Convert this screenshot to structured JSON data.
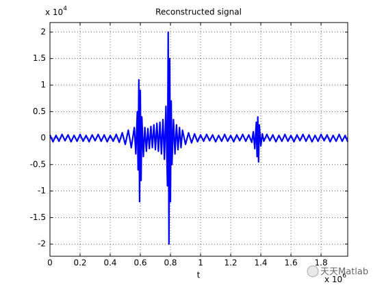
{
  "chart_data": {
    "type": "line",
    "title": "Reconstructed signal",
    "x_label": "t",
    "y_exponent": {
      "base": "x 10",
      "power": "4"
    },
    "x_exponent": {
      "base": "x 10",
      "power": "6"
    },
    "watermark": "天天Matlab",
    "xlim": [
      0,
      1.977
    ],
    "ylim": [
      -2.23,
      2.18
    ],
    "xticks": [
      0,
      0.2,
      0.4,
      0.6,
      0.8,
      1,
      1.2,
      1.4,
      1.6,
      1.8
    ],
    "yticks": [
      -2,
      -1.5,
      -1,
      -0.5,
      0,
      0.5,
      1,
      1.5,
      2
    ],
    "grid": true,
    "x": [
      0,
      0.02,
      0.04,
      0.06,
      0.08,
      0.1,
      0.12,
      0.14,
      0.16,
      0.18,
      0.2,
      0.22,
      0.24,
      0.26,
      0.28,
      0.3,
      0.32,
      0.34,
      0.36,
      0.38,
      0.4,
      0.42,
      0.44,
      0.46,
      0.48,
      0.5,
      0.52,
      0.54,
      0.56,
      0.57,
      0.58,
      0.585,
      0.59,
      0.595,
      0.6,
      0.605,
      0.61,
      0.62,
      0.63,
      0.64,
      0.65,
      0.66,
      0.67,
      0.68,
      0.69,
      0.7,
      0.71,
      0.72,
      0.73,
      0.74,
      0.75,
      0.76,
      0.77,
      0.78,
      0.785,
      0.79,
      0.795,
      0.8,
      0.805,
      0.81,
      0.82,
      0.83,
      0.84,
      0.85,
      0.86,
      0.87,
      0.88,
      0.9,
      0.92,
      0.94,
      0.96,
      0.98,
      1,
      1.02,
      1.04,
      1.06,
      1.08,
      1.1,
      1.12,
      1.14,
      1.16,
      1.18,
      1.2,
      1.22,
      1.24,
      1.26,
      1.28,
      1.3,
      1.32,
      1.34,
      1.35,
      1.36,
      1.37,
      1.375,
      1.38,
      1.385,
      1.39,
      1.4,
      1.41,
      1.42,
      1.44,
      1.46,
      1.48,
      1.5,
      1.52,
      1.54,
      1.56,
      1.58,
      1.6,
      1.62,
      1.64,
      1.66,
      1.68,
      1.7,
      1.72,
      1.74,
      1.76,
      1.78,
      1.8,
      1.82,
      1.84,
      1.86,
      1.88,
      1.9,
      1.92,
      1.94,
      1.96,
      1.977
    ],
    "series": [
      {
        "color": "#0000ff",
        "values": [
          0.06,
          -0.07,
          0.05,
          -0.06,
          0.07,
          -0.05,
          0.06,
          -0.07,
          0.05,
          -0.06,
          0.07,
          -0.06,
          0.05,
          -0.07,
          0.06,
          -0.05,
          0.07,
          -0.06,
          0.06,
          -0.07,
          0.05,
          -0.06,
          0.07,
          -0.08,
          0.1,
          -0.12,
          0.15,
          -0.18,
          0.2,
          -0.3,
          0.5,
          -0.6,
          1.1,
          -1.2,
          0.9,
          -0.8,
          0.4,
          -0.35,
          0.2,
          -0.25,
          0.18,
          -0.2,
          0.22,
          -0.18,
          0.25,
          -0.22,
          0.28,
          -0.25,
          0.3,
          -0.3,
          0.35,
          -0.4,
          0.6,
          -0.9,
          2.0,
          -2.0,
          1.5,
          -1.2,
          0.7,
          -0.5,
          0.35,
          -0.3,
          0.25,
          -0.22,
          0.2,
          -0.18,
          0.15,
          -0.12,
          0.1,
          -0.09,
          0.08,
          -0.07,
          0.06,
          -0.06,
          0.07,
          -0.05,
          0.06,
          -0.07,
          0.05,
          -0.06,
          0.07,
          -0.06,
          0.05,
          -0.07,
          0.06,
          -0.05,
          0.07,
          -0.06,
          0.06,
          -0.08,
          0.12,
          -0.2,
          0.3,
          -0.35,
          0.4,
          -0.45,
          0.25,
          -0.15,
          0.08,
          -0.06,
          0.07,
          -0.05,
          0.06,
          -0.07,
          0.05,
          -0.06,
          0.07,
          -0.06,
          0.05,
          -0.07,
          0.06,
          -0.05,
          0.07,
          -0.06,
          0.06,
          -0.07,
          0.05,
          -0.06,
          0.07,
          -0.05,
          0.06,
          -0.07,
          0.05,
          -0.06,
          0.07,
          -0.06,
          0.05,
          -0.07
        ]
      }
    ]
  }
}
